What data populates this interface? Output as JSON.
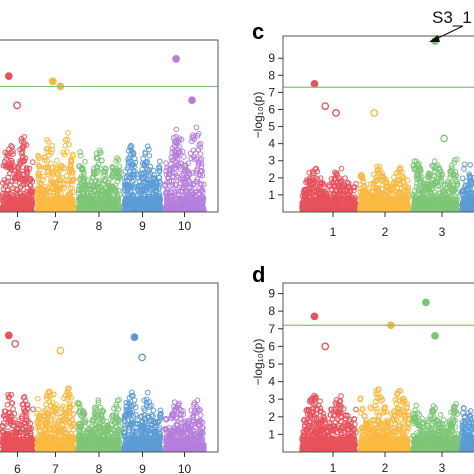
{
  "colors": {
    "chr1": "#e8505b",
    "chr2": "#e8505b",
    "chr3": "#f9b840",
    "chr4": "#7cc576",
    "chr5": "#5b9bd5",
    "chr6": "#e8505b",
    "chr7": "#f9b840",
    "chr8": "#7cc576",
    "chr9": "#5b9bd5",
    "chr10": "#b57edc",
    "threshold": "#7cc576",
    "frame": "#555555"
  },
  "chart_data": [
    {
      "id": "top-left",
      "type": "scatter",
      "panel_letter": "",
      "ylabel": "",
      "chromosomes_visible": [
        "6",
        "7",
        "8",
        "9",
        "10"
      ],
      "chromosome_colors": [
        "#e8505b",
        "#f9b840",
        "#7cc576",
        "#5b9bd5",
        "#b57edc"
      ],
      "ylim": [
        0,
        10
      ],
      "threshold": 7.3,
      "peaks": [
        4.5,
        4.8,
        3.6,
        3.9,
        5.0
      ],
      "highlights": [
        {
          "chr": "6",
          "y": 7.9,
          "color": "#e8505b"
        },
        {
          "chr": "7",
          "y": 7.6,
          "color": "#f9b840"
        },
        {
          "chr": "7",
          "y": 7.3,
          "color": "#f9b840"
        },
        {
          "chr": "10",
          "y": 8.9,
          "color": "#b57edc"
        },
        {
          "chr": "6",
          "y": 6.2,
          "color": "#e8505b"
        },
        {
          "chr": "10",
          "y": 6.5,
          "color": "#b57edc"
        }
      ]
    },
    {
      "id": "c",
      "type": "scatter",
      "panel_letter": "c",
      "ylabel": "−log₁₀(p)",
      "yticks": [
        "1",
        "2",
        "3",
        "4",
        "5",
        "6",
        "7",
        "8",
        "9"
      ],
      "chromosomes_visible": [
        "1",
        "2",
        "3"
      ],
      "chromosome_colors": [
        "#e8505b",
        "#f9b840",
        "#7cc576",
        "#5b9bd5"
      ],
      "ylim": [
        0,
        10.3
      ],
      "threshold": 7.3,
      "peaks": [
        2.6,
        2.7,
        3.2,
        2.9
      ],
      "highlights": [
        {
          "chr": "1",
          "y": 7.5,
          "color": "#e8505b"
        },
        {
          "chr": "1",
          "y": 6.2,
          "color": "#e8505b"
        },
        {
          "chr": "1",
          "y": 5.8,
          "color": "#e8505b"
        },
        {
          "chr": "2",
          "y": 5.8,
          "color": "#f9b840"
        },
        {
          "chr": "3",
          "y": 10.0,
          "color": "#7cc576"
        },
        {
          "chr": "3",
          "y": 4.3,
          "color": "#7cc576"
        }
      ],
      "annotation": "S3_1"
    },
    {
      "id": "bottom-left",
      "type": "scatter",
      "panel_letter": "",
      "ylabel": "",
      "chromosomes_visible": [
        "6",
        "7",
        "8",
        "9",
        "10"
      ],
      "chromosome_colors": [
        "#e8505b",
        "#f9b840",
        "#7cc576",
        "#5b9bd5",
        "#b57edc"
      ],
      "ylim": [
        0,
        10
      ],
      "peaks": [
        3.6,
        3.9,
        3.1,
        3.7,
        3.2
      ],
      "highlights": [
        {
          "chr": "6",
          "y": 6.9,
          "color": "#e8505b"
        },
        {
          "chr": "6",
          "y": 6.4,
          "color": "#e8505b"
        },
        {
          "chr": "7",
          "y": 6.0,
          "color": "#f9b840"
        },
        {
          "chr": "9",
          "y": 6.8,
          "color": "#5b9bd5"
        },
        {
          "chr": "9",
          "y": 5.6,
          "color": "#5b9bd5"
        }
      ]
    },
    {
      "id": "d",
      "type": "scatter",
      "panel_letter": "d",
      "ylabel": "−log₁₀(p)",
      "yticks": [
        "1",
        "2",
        "3",
        "4",
        "5",
        "6",
        "7",
        "8",
        "9"
      ],
      "chromosomes_visible": [
        "1",
        "2",
        "3"
      ],
      "chromosome_colors": [
        "#e8505b",
        "#f9b840",
        "#7cc576",
        "#5b9bd5"
      ],
      "ylim": [
        0,
        9.6
      ],
      "threshold": 7.2,
      "peaks": [
        3.4,
        3.6,
        2.8,
        2.6
      ],
      "highlights": [
        {
          "chr": "1",
          "y": 7.7,
          "color": "#e8505b"
        },
        {
          "chr": "1",
          "y": 6.0,
          "color": "#e8505b"
        },
        {
          "chr": "2",
          "y": 7.2,
          "color": "#f9b840"
        },
        {
          "chr": "3",
          "y": 8.5,
          "color": "#7cc576"
        },
        {
          "chr": "3",
          "y": 6.6,
          "color": "#7cc576"
        }
      ]
    }
  ]
}
